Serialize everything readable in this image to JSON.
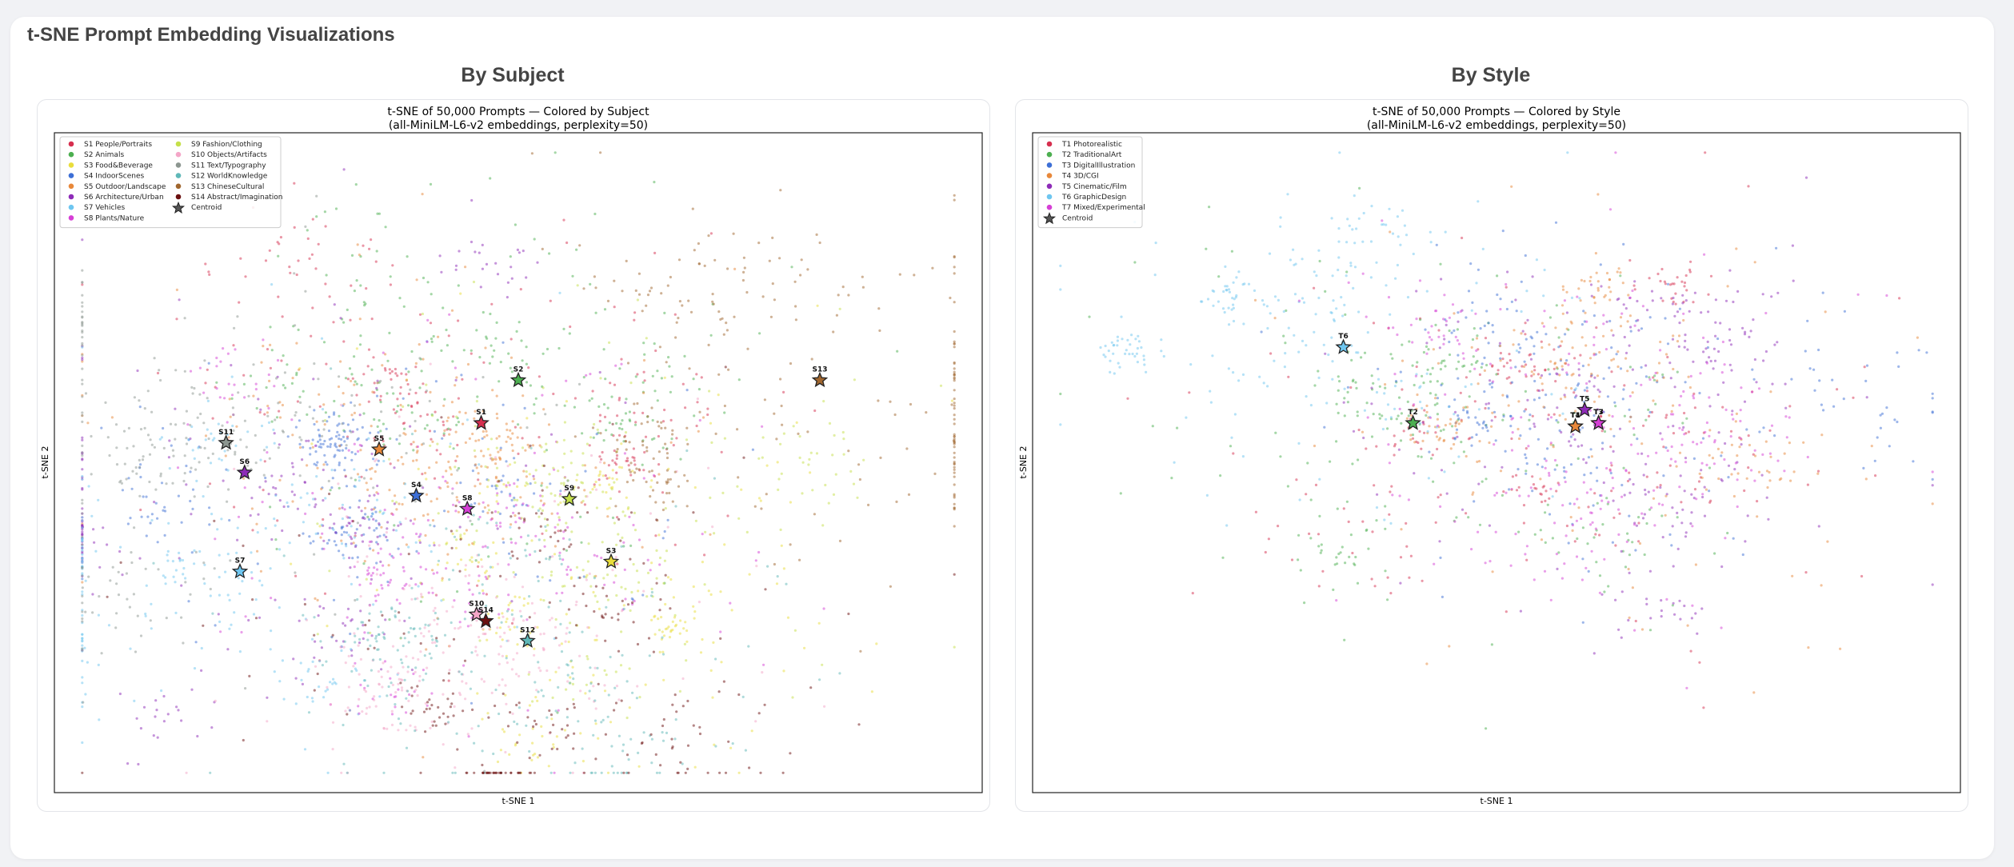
{
  "page": {
    "title": "t-SNE Prompt Embedding Visualizations"
  },
  "chart_data": [
    {
      "type": "scatter",
      "heading": "By Subject",
      "title": "t-SNE of 50,000 Prompts — Colored by Subject",
      "subtitle": "(all-MiniLM-L6-v2 embeddings, perplexity=50)",
      "xlabel": "t-SNE 1",
      "ylabel": "t-SNE 2",
      "xlim": [
        -100,
        100
      ],
      "ylim": [
        -100,
        100
      ],
      "grid": false,
      "legend": "top-left",
      "centroid_label": "Centroid",
      "centroid_color": "#555555",
      "series": [
        {
          "name": "S1 People/Portraits",
          "label": "S1",
          "color": "#d62f4f",
          "centroid": [
            -8,
            12
          ]
        },
        {
          "name": "S2 Animals",
          "label": "S2",
          "color": "#4caf50",
          "centroid": [
            0,
            25
          ]
        },
        {
          "name": "S3 Food&Beverage",
          "label": "S3",
          "color": "#e9dd3c",
          "centroid": [
            20,
            -30
          ]
        },
        {
          "name": "S4 IndoorScenes",
          "label": "S4",
          "color": "#3d6fd6",
          "centroid": [
            -22,
            -10
          ]
        },
        {
          "name": "S5 Outdoor/Landscape",
          "label": "S5",
          "color": "#e8883a",
          "centroid": [
            -30,
            4
          ]
        },
        {
          "name": "S6 Architecture/Urban",
          "label": "S6",
          "color": "#8e2bb8",
          "centroid": [
            -59,
            -3
          ]
        },
        {
          "name": "S7 Vehicles",
          "label": "S7",
          "color": "#6ec6f0",
          "centroid": [
            -60,
            -33
          ]
        },
        {
          "name": "S8 Plants/Nature",
          "label": "S8",
          "color": "#d63fd6",
          "centroid": [
            -11,
            -14
          ]
        },
        {
          "name": "S9 Fashion/Clothing",
          "label": "S9",
          "color": "#c5e04a",
          "centroid": [
            11,
            -11
          ]
        },
        {
          "name": "S10 Objects/Artifacts",
          "label": "S10",
          "color": "#f4a6c8",
          "centroid": [
            -9,
            -46
          ]
        },
        {
          "name": "S11 Text/Typography",
          "label": "S11",
          "color": "#8c9690",
          "centroid": [
            -63,
            6
          ]
        },
        {
          "name": "S12 WorldKnowledge",
          "label": "S12",
          "color": "#5fb8b8",
          "centroid": [
            2,
            -54
          ]
        },
        {
          "name": "S13 ChineseCultural",
          "label": "S13",
          "color": "#a0662e",
          "centroid": [
            65,
            25
          ]
        },
        {
          "name": "S14 Abstract/Imagination",
          "label": "S14",
          "color": "#6b1010",
          "centroid": [
            -7,
            -48
          ]
        }
      ]
    },
    {
      "type": "scatter",
      "heading": "By Style",
      "title": "t-SNE of 50,000 Prompts — Colored by Style",
      "subtitle": "(all-MiniLM-L6-v2 embeddings, perplexity=50)",
      "xlabel": "t-SNE 1",
      "ylabel": "t-SNE 2",
      "xlim": [
        -100,
        100
      ],
      "ylim": [
        -100,
        100
      ],
      "grid": false,
      "legend": "top-left",
      "centroid_label": "Centroid",
      "centroid_color": "#555555",
      "series": [
        {
          "name": "T1 Photorealistic",
          "label": "T1",
          "color": "#d62f4f",
          "centroid": [
            17,
            11
          ]
        },
        {
          "name": "T2 TraditionalArt",
          "label": "T2",
          "color": "#4caf50",
          "centroid": [
            -18,
            12
          ]
        },
        {
          "name": "T3 DigitalIllustration",
          "label": "T3",
          "color": "#3d6fd6",
          "centroid": [
            22,
            12
          ]
        },
        {
          "name": "T4 3D/CGI",
          "label": "T4",
          "color": "#e8883a",
          "centroid": [
            17,
            11
          ]
        },
        {
          "name": "T5 Cinematic/Film",
          "label": "T5",
          "color": "#8e2bb8",
          "centroid": [
            19,
            16
          ]
        },
        {
          "name": "T6 GraphicDesign",
          "label": "T6",
          "color": "#6ec6f0",
          "centroid": [
            -33,
            35
          ]
        },
        {
          "name": "T7 Mixed/Experimental",
          "label": "T7",
          "color": "#d63fd6",
          "centroid": [
            22,
            12
          ]
        }
      ]
    }
  ]
}
